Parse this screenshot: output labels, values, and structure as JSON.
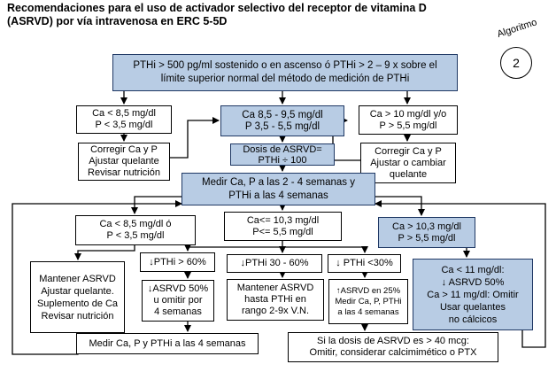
{
  "title": "Recomendaciones para el uso de activador selectivo del receptor de vitamina D\n(ASRVD) por vía intravenosa en ERC 5-5D",
  "badge": {
    "label": "Algoritmo",
    "number": "2"
  },
  "boxes": {
    "top": "PTHi > 500 pg/ml sostenido o en ascenso ó PTHi > 2 – 9 x sobre el\nlímite superior normal del método de medición de PTHi",
    "left_cond": "Ca < 8,5 mg/dl\nP < 3,5 mg/dl",
    "center_cond": "Ca 8,5 - 9,5 mg/dl\nP 3,5 - 5,5 mg/dl",
    "right_cond": "Ca > 10 mg/dl y/o\nP > 5,5 mg/dl",
    "left_action": "Corregir Ca y P\nAjustar quelante\nRevisar nutrición",
    "dose": "Dosis de ASRVD=\nPTHi ÷ 100",
    "right_action": "Corregir Ca y P\nAjustar o cambiar\nquelante",
    "measure": "Medir Ca, P a las 2 - 4 semanas y\nPTHi a las 4 semanas",
    "low2": "Ca < 8,5 mg/dl ó\nP < 3,5 mg/dl",
    "mid2": "Ca<= 10,3 mg/dl\nP<=  5,5 mg/dl",
    "high2": "Ca > 10,3 mg/dl\nP > 5,5 mg/dl",
    "maintain_left": "Mantener ASRVD\nAjustar quelante.\nSuplemento de Ca\nRevisar nutrición",
    "pth_gt60": "↓PTHi > 60%",
    "pth_30_60": "↓PTHi 30 - 60%",
    "pth_lt30": "↓ PTHi <30%",
    "ca11": "Ca < 11 mg/dl:\n↓ ASRVD 50%\nCa > 11 mg/dl: Omitir\nUsar quelantes\nno cálcicos",
    "asrvd50": "↓ASRVD 50%\nu omitir por\n4 semanas",
    "maintain_mid": "Mantener ASRVD\nhasta PTHi en\nrango 2-9x V.N.",
    "increase": "↑ASRVD en 25%\nMedir Ca, P, PTHi\na las 4 semanas",
    "measure_bottom": "Medir Ca, P y PTHi a las 4 semanas",
    "dose_bottom": "Si la dosis de ASRVD es > 40 mcg:\nOmitir, considerar calcimimético o PTX"
  }
}
